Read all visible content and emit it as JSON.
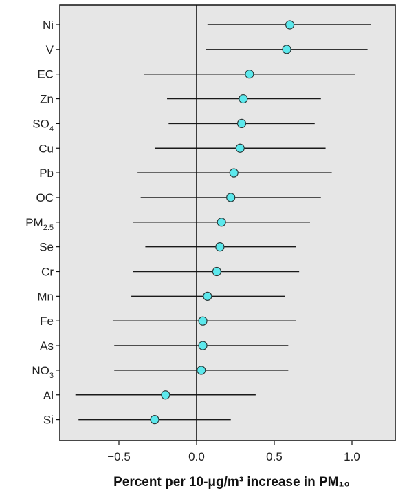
{
  "chart_data": {
    "type": "scatter",
    "subtype": "forest-plot",
    "title": "",
    "xlabel": "Percent per 10-μg/m³ increase in PM₁₀",
    "ylabel": "",
    "xlim": [
      -0.88,
      1.28
    ],
    "xticks": [
      -0.5,
      0.0,
      0.5,
      1.0
    ],
    "xtick_labels": [
      "−0.5",
      "0.0",
      "0.5",
      "1.0"
    ],
    "grid": false,
    "reference_line_x": 0,
    "colors": {
      "plot_background": "#e6e6e6",
      "point_fill": "#5ce8ec",
      "point_stroke": "#2a3a3a",
      "ci_line": "#1a1a1a",
      "reference_line": "#111111"
    },
    "categories": [
      {
        "label": "Ni",
        "base": "Ni",
        "sub": "",
        "estimate": 0.6,
        "ci_low": 0.07,
        "ci_high": 1.12
      },
      {
        "label": "V",
        "base": "V",
        "sub": "",
        "estimate": 0.58,
        "ci_low": 0.06,
        "ci_high": 1.1
      },
      {
        "label": "EC",
        "base": "EC",
        "sub": "",
        "estimate": 0.34,
        "ci_low": -0.34,
        "ci_high": 1.02
      },
      {
        "label": "Zn",
        "base": "Zn",
        "sub": "",
        "estimate": 0.3,
        "ci_low": -0.19,
        "ci_high": 0.8
      },
      {
        "label": "SO4",
        "base": "SO",
        "sub": "4",
        "estimate": 0.29,
        "ci_low": -0.18,
        "ci_high": 0.76
      },
      {
        "label": "Cu",
        "base": "Cu",
        "sub": "",
        "estimate": 0.28,
        "ci_low": -0.27,
        "ci_high": 0.83
      },
      {
        "label": "Pb",
        "base": "Pb",
        "sub": "",
        "estimate": 0.24,
        "ci_low": -0.38,
        "ci_high": 0.87
      },
      {
        "label": "OC",
        "base": "OC",
        "sub": "",
        "estimate": 0.22,
        "ci_low": -0.36,
        "ci_high": 0.8
      },
      {
        "label": "PM2.5",
        "base": "PM",
        "sub": "2.5",
        "estimate": 0.16,
        "ci_low": -0.41,
        "ci_high": 0.73
      },
      {
        "label": "Se",
        "base": "Se",
        "sub": "",
        "estimate": 0.15,
        "ci_low": -0.33,
        "ci_high": 0.64
      },
      {
        "label": "Cr",
        "base": "Cr",
        "sub": "",
        "estimate": 0.13,
        "ci_low": -0.41,
        "ci_high": 0.66
      },
      {
        "label": "Mn",
        "base": "Mn",
        "sub": "",
        "estimate": 0.07,
        "ci_low": -0.42,
        "ci_high": 0.57
      },
      {
        "label": "Fe",
        "base": "Fe",
        "sub": "",
        "estimate": 0.04,
        "ci_low": -0.54,
        "ci_high": 0.64
      },
      {
        "label": "As",
        "base": "As",
        "sub": "",
        "estimate": 0.04,
        "ci_low": -0.53,
        "ci_high": 0.59
      },
      {
        "label": "NO3",
        "base": "NO",
        "sub": "3",
        "estimate": 0.03,
        "ci_low": -0.53,
        "ci_high": 0.59
      },
      {
        "label": "Al",
        "base": "Al",
        "sub": "",
        "estimate": -0.2,
        "ci_low": -0.78,
        "ci_high": 0.38
      },
      {
        "label": "Si",
        "base": "Si",
        "sub": "",
        "estimate": -0.27,
        "ci_low": -0.76,
        "ci_high": 0.22
      }
    ]
  }
}
